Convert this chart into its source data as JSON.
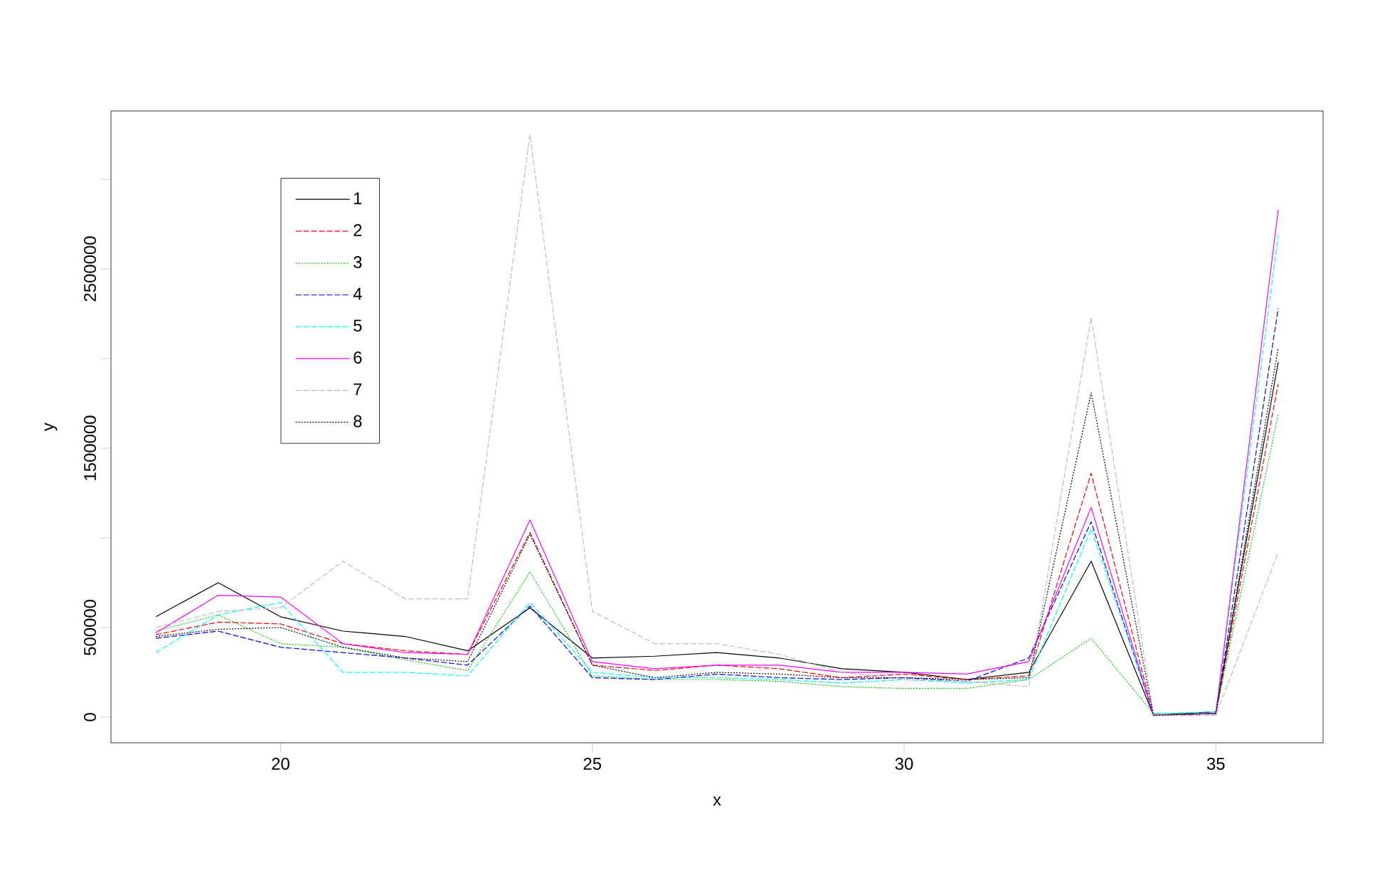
{
  "chart_data": {
    "type": "line",
    "xlabel": "x",
    "ylabel": "y",
    "x": [
      18,
      19,
      20,
      21,
      22,
      23,
      24,
      25,
      26,
      27,
      28,
      29,
      30,
      31,
      32,
      33,
      34,
      35,
      36
    ],
    "xlim": [
      17.28,
      36.72
    ],
    "xticks": [
      20,
      25,
      30,
      35
    ],
    "ylim": [
      -143000,
      3381000
    ],
    "yticks": [
      0,
      500000,
      {
        "value": 1000000,
        "label": null
      },
      1500000,
      {
        "value": 2000000,
        "label": null
      },
      2500000,
      {
        "value": 3000000,
        "label": null
      }
    ],
    "grid": false,
    "legend": "top left",
    "marker": "none",
    "series": [
      {
        "name": "1",
        "color": "#000000",
        "line_style": "solid",
        "values": [
          560000,
          750000,
          560000,
          480000,
          450000,
          370000,
          610000,
          330000,
          340000,
          360000,
          330000,
          270000,
          250000,
          210000,
          250000,
          870000,
          10000,
          30000,
          1980000
        ]
      },
      {
        "name": "2",
        "color": "#ff0000",
        "line_style": "dashed",
        "values": [
          460000,
          530000,
          520000,
          410000,
          370000,
          350000,
          1030000,
          290000,
          260000,
          290000,
          270000,
          220000,
          240000,
          210000,
          230000,
          1360000,
          10000,
          20000,
          1860000
        ]
      },
      {
        "name": "3",
        "color": "#00cd00",
        "line_style": "dotted",
        "values": [
          480000,
          570000,
          410000,
          390000,
          320000,
          260000,
          810000,
          230000,
          210000,
          210000,
          200000,
          170000,
          160000,
          160000,
          210000,
          440000,
          20000,
          20000,
          1690000
        ]
      },
      {
        "name": "4",
        "color": "#0000ff",
        "line_style": "dashed",
        "values": [
          440000,
          480000,
          390000,
          360000,
          330000,
          290000,
          620000,
          220000,
          210000,
          240000,
          220000,
          210000,
          220000,
          200000,
          330000,
          1090000,
          10000,
          20000,
          2280000
        ]
      },
      {
        "name": "5",
        "color": "#00ffff",
        "line_style": "dashed",
        "values": [
          360000,
          570000,
          640000,
          250000,
          250000,
          230000,
          640000,
          250000,
          220000,
          220000,
          210000,
          190000,
          210000,
          190000,
          210000,
          1050000,
          20000,
          30000,
          2690000
        ]
      },
      {
        "name": "6",
        "color": "#ff00ff",
        "line_style": "solid",
        "values": [
          470000,
          680000,
          670000,
          410000,
          360000,
          350000,
          1100000,
          310000,
          270000,
          290000,
          290000,
          250000,
          250000,
          240000,
          310000,
          1170000,
          10000,
          20000,
          2830000
        ]
      },
      {
        "name": "7",
        "color": "#bebebe",
        "line_style": "dashed",
        "values": [
          500000,
          590000,
          610000,
          870000,
          660000,
          660000,
          3250000,
          590000,
          410000,
          410000,
          350000,
          250000,
          210000,
          200000,
          170000,
          2230000,
          10000,
          10000,
          920000
        ]
      },
      {
        "name": "8",
        "color": "#000000",
        "line_style": "dotted",
        "values": [
          450000,
          490000,
          500000,
          390000,
          330000,
          310000,
          1020000,
          290000,
          220000,
          250000,
          240000,
          220000,
          220000,
          210000,
          220000,
          1810000,
          10000,
          20000,
          2060000
        ]
      }
    ]
  }
}
